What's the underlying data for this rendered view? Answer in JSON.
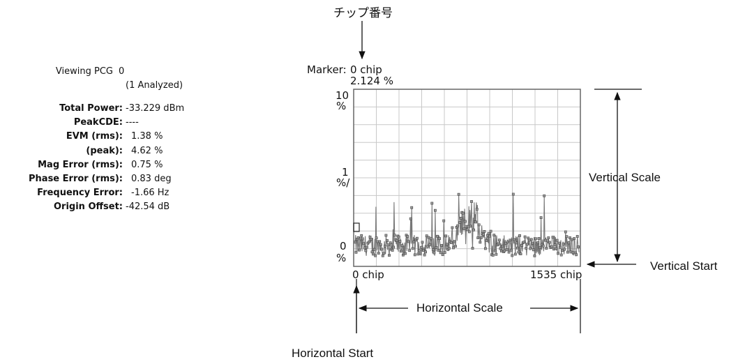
{
  "callout_top": "チップ番号",
  "summary": {
    "viewing_label": "Viewing PCG",
    "viewing_value": "0",
    "analyzed": "(1 Analyzed)",
    "rows": [
      {
        "label": "Total Power:",
        "value": "-33.229 dBm"
      },
      {
        "label": "PeakCDE:",
        "value": "----"
      },
      {
        "label": "EVM (rms):",
        "value": "1.38 %"
      },
      {
        "label": "(peak):",
        "value": "4.62 %"
      },
      {
        "label": "Mag Error (rms):",
        "value": "0.75 %"
      },
      {
        "label": "Phase Error (rms):",
        "value": "0.83 deg"
      },
      {
        "label": "Frequency Error:",
        "value": "-1.66  Hz"
      },
      {
        "label": "Origin Offset:",
        "value": "-42.54 dB"
      }
    ]
  },
  "marker": {
    "label": "Marker:",
    "position": "0 chip",
    "value": "2.124 %"
  },
  "y_axis": {
    "top_value": "10",
    "top_unit": "%",
    "mid_value": "1",
    "mid_unit": "%/",
    "bottom_value": "0",
    "bottom_unit": "%"
  },
  "x_axis": {
    "start": "0 chip",
    "end": "1535 chip"
  },
  "annotations": {
    "vertical_scale": "Vertical Scale",
    "vertical_start": "Vertical Start",
    "horizontal_scale": "Horizontal Scale",
    "horizontal_start": "Horizontal Start"
  },
  "colors": {
    "trace": "#777777",
    "points": "#999999",
    "grid": "#c8c8c8"
  }
}
